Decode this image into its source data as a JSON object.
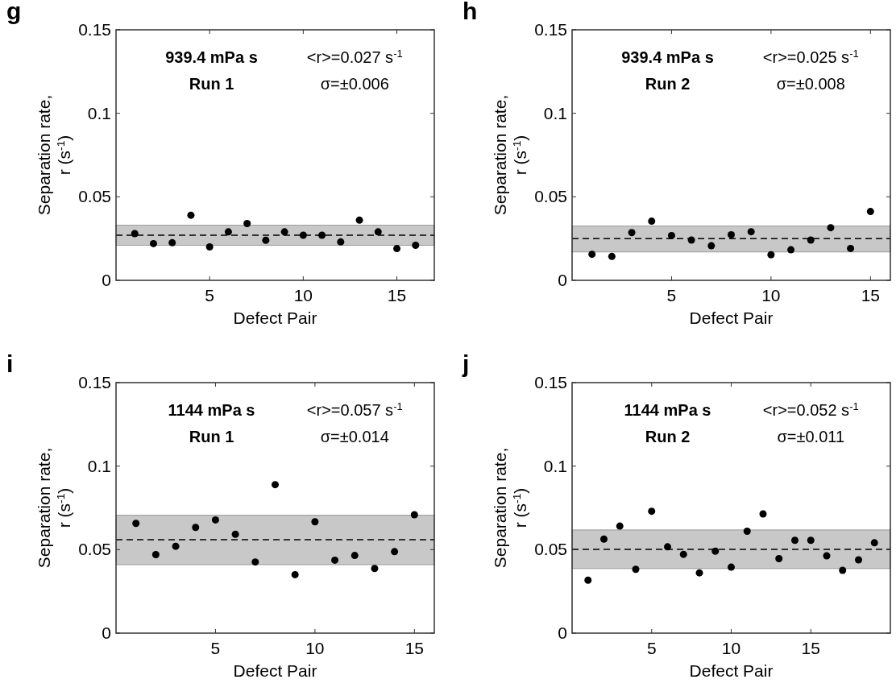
{
  "chart_data": [
    {
      "type": "scatter",
      "title": "g",
      "xlabel": "Defect Pair",
      "ylabel": "Separation rate, r (s$^{-1}$)",
      "annotations": [
        "939.4 mPa s",
        "Run 1",
        "<r>=0.027 s$^{-1}$",
        "σ=±0.006"
      ],
      "marker": "circle",
      "xlim": [
        0,
        17
      ],
      "xticks": [
        5,
        10,
        15
      ],
      "ylim": [
        0,
        0.15
      ],
      "yticks": [
        0,
        0.05,
        0.1,
        0.15
      ],
      "x": [
        1,
        2,
        3,
        4,
        5,
        6,
        7,
        8,
        9,
        10,
        11,
        12,
        13,
        14,
        15,
        16
      ],
      "series": [
        {
          "color": "#000000",
          "values": [
            0.028,
            0.022,
            0.0225,
            0.039,
            0.02,
            0.029,
            0.034,
            0.024,
            0.029,
            0.027,
            0.027,
            0.023,
            0.036,
            0.029,
            0.019,
            0.021
          ]
        }
      ],
      "ref_lines": [
        {
          "axis": "y",
          "value": 0.027,
          "color": "#000000",
          "line_style": "dashed"
        }
      ],
      "bands": [
        {
          "axis": "y",
          "from": 0.021,
          "to": 0.033,
          "color": "#c8c8c8"
        }
      ]
    },
    {
      "type": "scatter",
      "title": "h",
      "xlabel": "Defect Pair",
      "ylabel": "Separation rate, r (s$^{-1}$)",
      "annotations": [
        "939.4 mPa s",
        "Run 2",
        "<r>=0.025 s$^{-1}$",
        "σ=±0.008"
      ],
      "marker": "circle",
      "xlim": [
        0,
        16
      ],
      "xticks": [
        5,
        10,
        15
      ],
      "ylim": [
        0,
        0.15
      ],
      "yticks": [
        0,
        0.05,
        0.1,
        0.15
      ],
      "x": [
        1,
        2,
        3,
        4,
        5,
        6,
        7,
        8,
        9,
        10,
        11,
        12,
        13,
        14,
        15
      ],
      "series": [
        {
          "color": "#000000",
          "values": [
            0.0156,
            0.0143,
            0.0286,
            0.0354,
            0.0268,
            0.0241,
            0.0207,
            0.0273,
            0.0291,
            0.0153,
            0.0183,
            0.0241,
            0.0315,
            0.0191,
            0.0412
          ]
        }
      ],
      "ref_lines": [
        {
          "axis": "y",
          "value": 0.025,
          "color": "#000000",
          "line_style": "dashed"
        }
      ],
      "bands": [
        {
          "axis": "y",
          "from": 0.017,
          "to": 0.0325,
          "color": "#c8c8c8"
        }
      ]
    },
    {
      "type": "scatter",
      "title": "i",
      "xlabel": "Defect Pair",
      "ylabel": "Separation rate, r (s$^{-1}$)",
      "annotations": [
        "1144 mPa s",
        "Run 1",
        "<r>=0.057 s$^{-1}$",
        "σ=±0.014"
      ],
      "marker": "circle",
      "xlim": [
        0,
        16
      ],
      "xticks": [
        5,
        10,
        15
      ],
      "ylim": [
        0,
        0.15
      ],
      "yticks": [
        0,
        0.05,
        0.1,
        0.15
      ],
      "x": [
        1,
        2,
        3,
        4,
        5,
        6,
        7,
        8,
        9,
        10,
        11,
        12,
        13,
        14,
        15
      ],
      "series": [
        {
          "color": "#000000",
          "values": [
            0.0657,
            0.047,
            0.052,
            0.0633,
            0.0678,
            0.0592,
            0.0426,
            0.0889,
            0.035,
            0.0667,
            0.0437,
            0.0465,
            0.0387,
            0.0488,
            0.0709
          ]
        }
      ],
      "ref_lines": [
        {
          "axis": "y",
          "value": 0.056,
          "color": "#000000",
          "line_style": "dashed"
        }
      ],
      "bands": [
        {
          "axis": "y",
          "from": 0.041,
          "to": 0.0706,
          "color": "#c8c8c8"
        }
      ]
    },
    {
      "type": "scatter",
      "title": "j",
      "xlabel": "Defect Pair",
      "ylabel": "Separation rate, r (s$^{-1}$)",
      "annotations": [
        "1144 mPa s",
        "Run 2",
        "<r>=0.052 s$^{-1}$",
        "σ=±0.011"
      ],
      "marker": "circle",
      "xlim": [
        0,
        20
      ],
      "xticks": [
        5,
        10,
        15
      ],
      "ylim": [
        0,
        0.15
      ],
      "yticks": [
        0,
        0.05,
        0.1,
        0.15
      ],
      "x": [
        1,
        2,
        3,
        4,
        5,
        6,
        7,
        8,
        9,
        10,
        11,
        12,
        13,
        14,
        15,
        16,
        17,
        18,
        19
      ],
      "series": [
        {
          "color": "#000000",
          "values": [
            0.0317,
            0.0563,
            0.0641,
            0.0382,
            0.073,
            0.0517,
            0.0472,
            0.0361,
            0.0491,
            0.0395,
            0.061,
            0.0714,
            0.0446,
            0.0556,
            0.0556,
            0.0463,
            0.0376,
            0.0439,
            0.0541
          ]
        }
      ],
      "ref_lines": [
        {
          "axis": "y",
          "value": 0.0502,
          "color": "#000000",
          "line_style": "dashed"
        }
      ],
      "bands": [
        {
          "axis": "y",
          "from": 0.0387,
          "to": 0.0618,
          "color": "#c8c8c8"
        }
      ]
    }
  ]
}
